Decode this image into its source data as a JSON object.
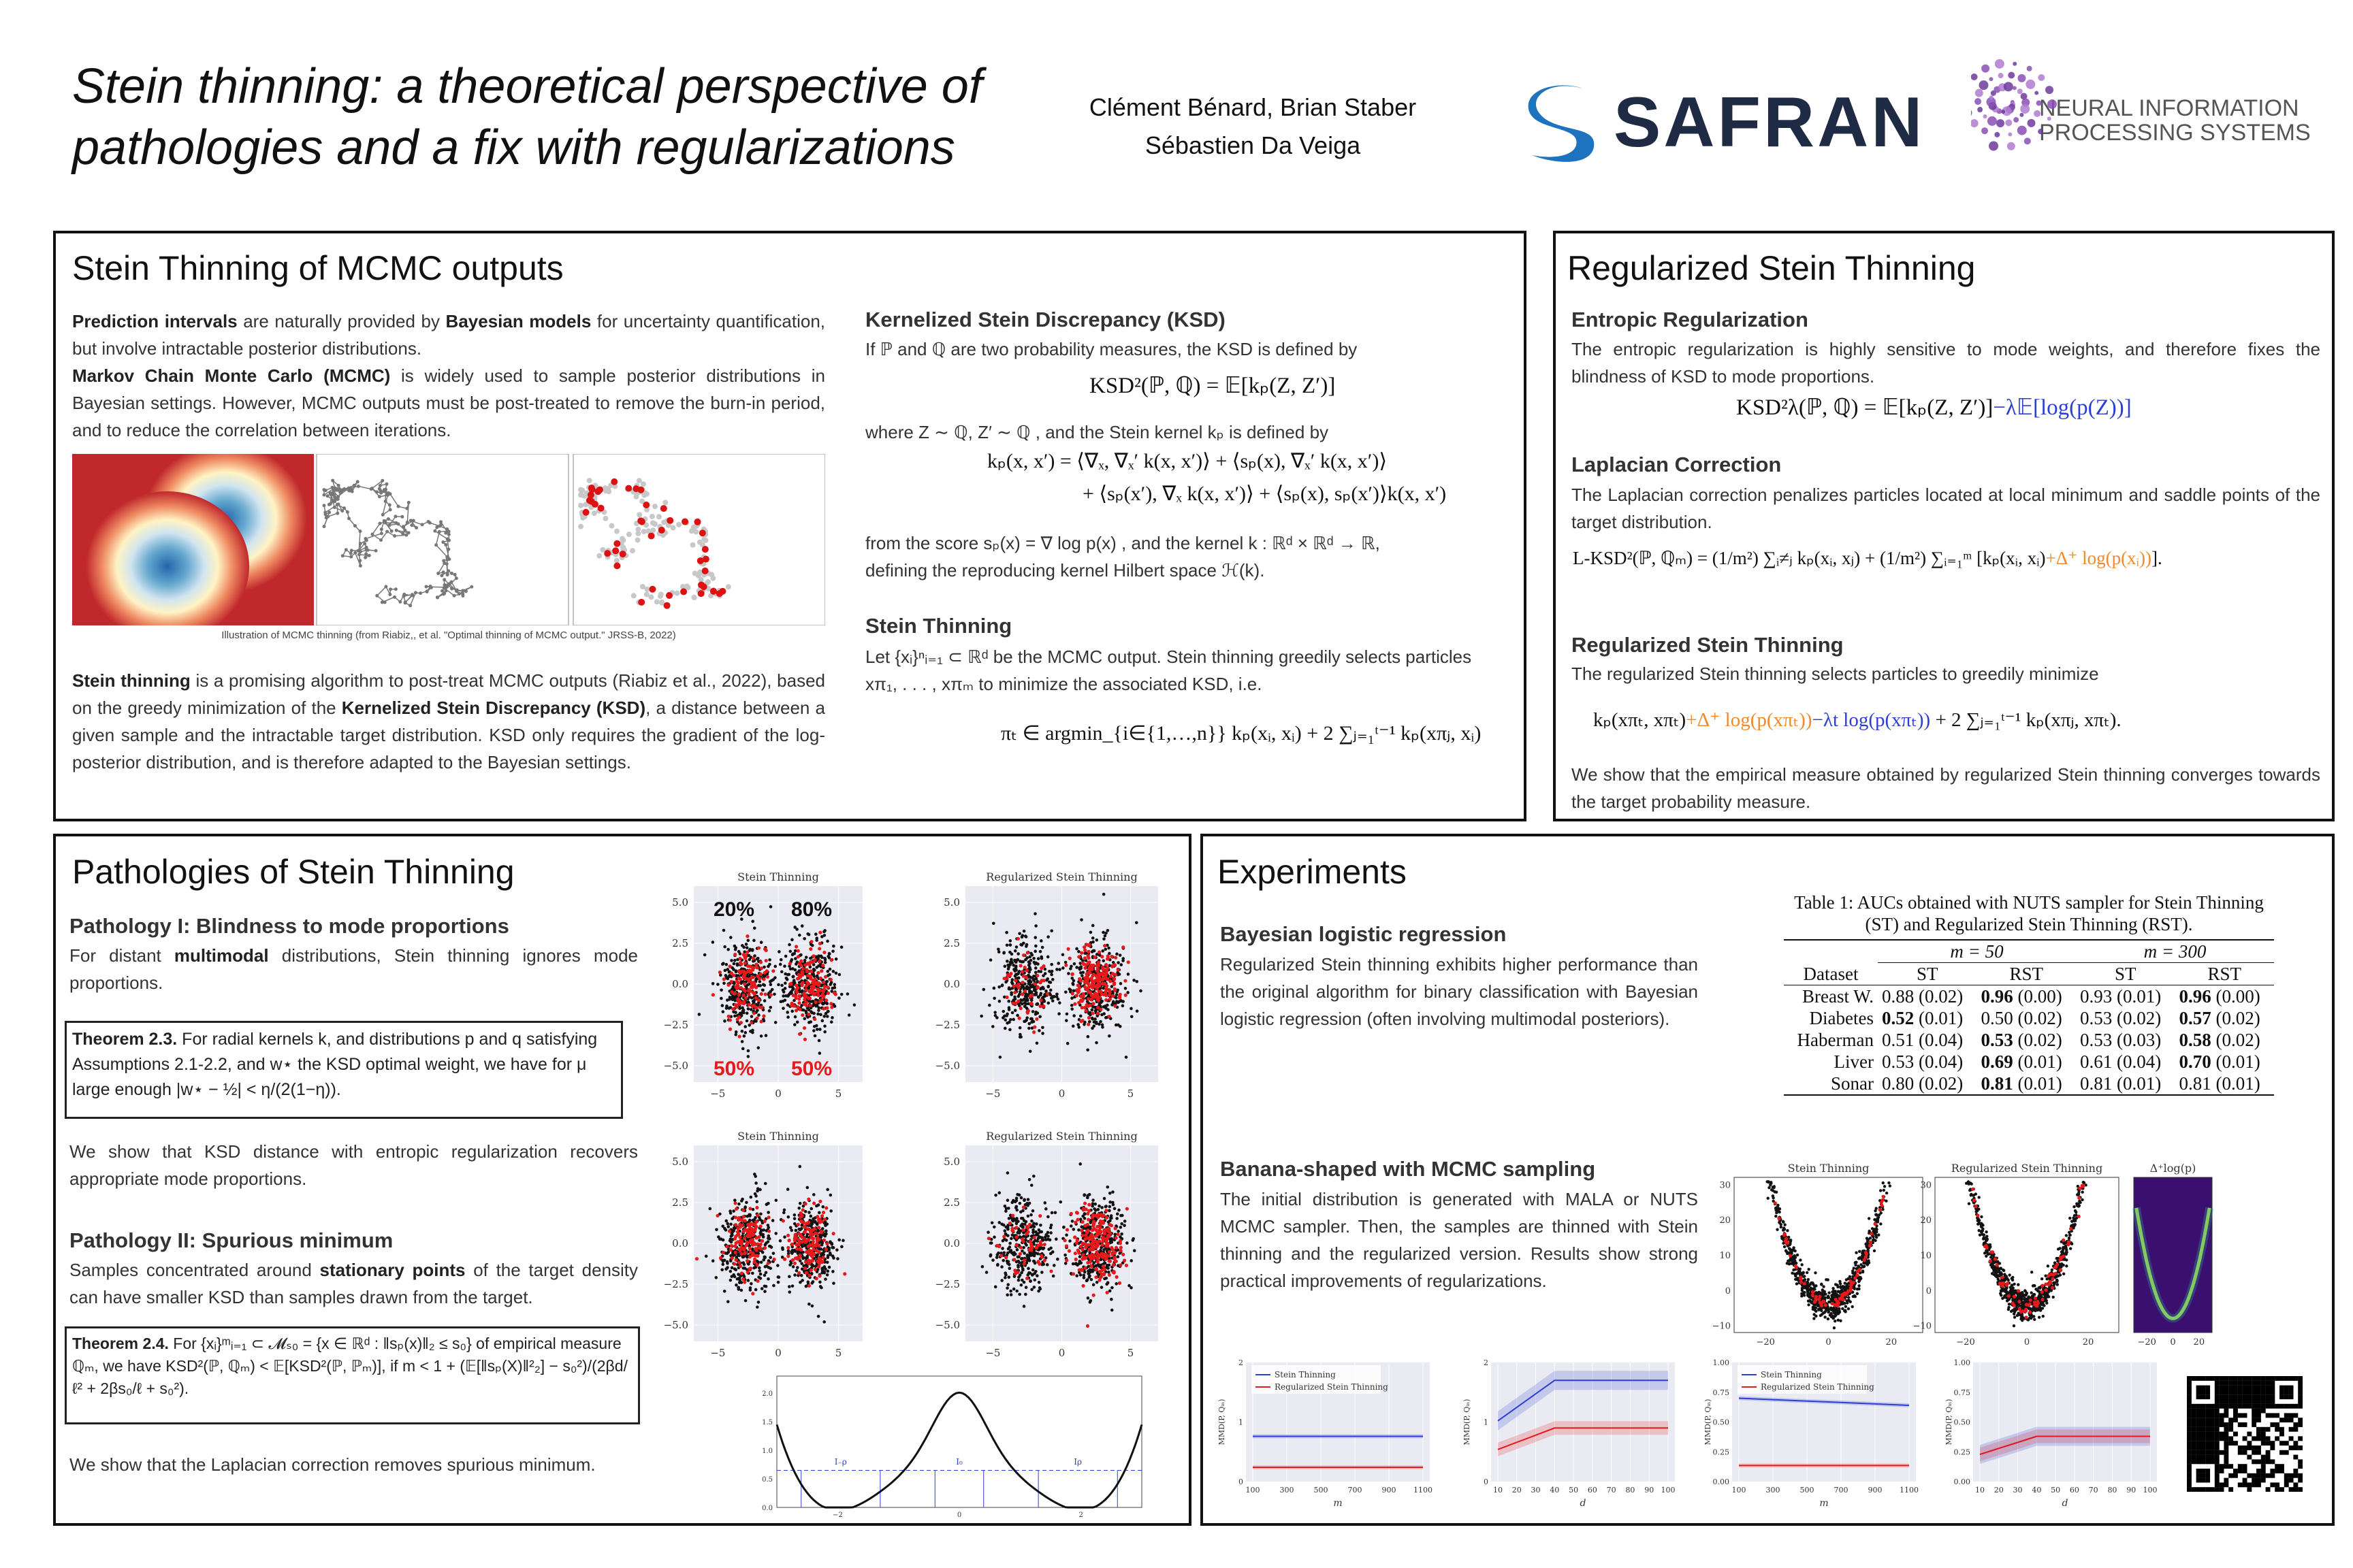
{
  "header": {
    "title_line1": "Stein thinning: a theoretical perspective of",
    "title_line2": "pathologies and a fix with regularizations",
    "authors_line1": "Clément Bénard, Brian Staber",
    "authors_line2": "Sébastien Da Veiga",
    "safran": "SAFRAN",
    "neurips_line1": "NEURAL INFORMATION",
    "neurips_line2": "PROCESSING SYSTEMS"
  },
  "mcmc": {
    "heading": "Stein Thinning of MCMC outputs",
    "intro": [
      {
        "bold": "Prediction intervals"
      },
      " are naturally provided by ",
      {
        "bold": "Bayesian models"
      },
      " for uncertainty quantification, but involve intractable posterior distributions."
    ],
    "intro2": [
      {
        "bold": "Markov Chain Monte Carlo (MCMC)"
      },
      " is widely used to sample posterior distributions in Bayesian settings. However, MCMC outputs must be post-treated to remove the burn-in period, and to reduce the correlation between iterations."
    ],
    "caption": "Illustration of MCMC thinning (from Riabiz,, et al. \"Optimal thinning of MCMC output.\" JRSS-B, 2022)",
    "para": [
      {
        "bold": "Stein thinning"
      },
      " is a promising algorithm to post-treat MCMC outputs (Riabiz et al., 2022), based on the greedy minimization of the ",
      {
        "bold": "Kernelized Stein Discrepancy (KSD)"
      },
      ", a distance between a given sample and the intractable target distribution. KSD only requires the gradient of the log-posterior distribution, and is therefore adapted to the Bayesian settings."
    ],
    "ksd_heading": "Kernelized Stein Discrepancy (KSD)",
    "ksd_text": "If ℙ and ℚ are two probability measures, the KSD is defined by",
    "ksd_eq": "KSD²(ℙ, ℚ) = 𝔼[kₚ(Z, Z′)]",
    "where": "where Z ∼ ℚ, Z′ ∼ ℚ , and the Stein kernel  kₚ  is defined by",
    "kernel_eq1": "kₚ(x, x′) = ⟨∇ₓ, ∇ₓ′ k(x, x′)⟩ + ⟨sₚ(x), ∇ₓ′ k(x, x′)⟩",
    "kernel_eq2": "+ ⟨sₚ(x′), ∇ₓ k(x, x′)⟩ + ⟨sₚ(x), sₚ(x′)⟩k(x, x′)",
    "score": "from the score  sₚ(x) = ∇ log p(x) , and the kernel  k : ℝᵈ × ℝᵈ → ℝ,",
    "score2": "defining the reproducing kernel Hilbert space ℋ(k).",
    "st_heading": "Stein Thinning",
    "st_text1": "Let {xᵢ}ⁿᵢ₌₁ ⊂ ℝᵈ be the MCMC output. Stein thinning greedily selects particles",
    "st_text2": "xπ₁, . . . , xπₘ  to minimize the associated KSD, i.e.",
    "st_eq": "πₜ ∈ argmin_{i∈{1,…,n}} kₚ(xᵢ, xᵢ) + 2 ∑ⱼ₌₁ᵗ⁻¹ kₚ(xπⱼ, xᵢ)"
  },
  "regularized": {
    "heading": "Regularized Stein Thinning",
    "ent_heading": "Entropic Regularization",
    "ent_text": "The entropic regularization is highly sensitive to mode weights, and therefore fixes the blindness of KSD to mode proportions.",
    "ent_eq": [
      "KSD²λ(ℙ, ℚ) = 𝔼[kₚ(Z, Z′)]",
      {
        "text": "−λ𝔼[log(p(Z))]",
        "color": "#2b3fd0"
      }
    ],
    "lap_heading": "Laplacian Correction",
    "lap_text": "The Laplacian correction penalizes particles located at local minimum and saddle points of the target distribution.",
    "lap_eq": [
      "L-KSD²(ℙ, ℚₘ) = (1/m²) ∑ᵢ≠ⱼ kₚ(xᵢ, xⱼ) + (1/m²) ∑ᵢ₌₁ᵐ [kₚ(xᵢ, xᵢ)",
      {
        "text": "+Δ⁺ log(p(xᵢ))",
        "color": "#f08a2c"
      },
      "]."
    ],
    "rst_heading": "Regularized Stein Thinning",
    "rst_text": "The regularized Stein thinning selects particles to greedily minimize",
    "rst_eq": [
      "kₚ(xπₜ, xπₜ)",
      {
        "text": "+Δ⁺ log(p(xπₜ))",
        "color": "#f08a2c"
      },
      {
        "text": "−λt log(p(xπₜ))",
        "color": "#2b3fd0"
      },
      " + 2 ∑ⱼ₌₁ᵗ⁻¹ kₚ(xπⱼ, xπₜ)."
    ],
    "conclusion": "We show that the empirical measure obtained by regularized Stein thinning converges towards the target probability measure."
  },
  "pathology": {
    "heading": "Pathologies of Stein Thinning",
    "p1_heading": "Pathology I: Blindness to mode proportions",
    "p1_text": [
      "For distant ",
      {
        "bold": "multimodal"
      },
      " distributions, Stein thinning ignores mode proportions."
    ],
    "thm23": [
      {
        "bold": "Theorem 2.3."
      },
      " For radial kernels k, and distributions p and q satisfying Assumptions 2.1-2.2, and w⋆ the KSD optimal weight, we have for μ large enough |w⋆ − ½| < η/(2(1−η))."
    ],
    "p1_after": "We show that KSD distance with entropic regularization recovers appropriate mode proportions.",
    "p2_heading": "Pathology II: Spurious minimum",
    "p2_text": [
      "Samples concentrated around ",
      {
        "bold": "stationary points"
      },
      " of the target density can have smaller KSD than samples drawn from the target."
    ],
    "thm24": [
      {
        "bold": "Theorem 2.4."
      },
      " For {xᵢ}ᵐᵢ₌₁ ⊂ 𝓜ₛ₀ = {x ∈ ℝᵈ : ‖sₚ(x)‖₂ ≤ s₀} of empirical measure ℚₘ, we have KSD²(ℙ, ℚₘ) < 𝔼[KSD²(ℙ, ℙₘ)], if  m < 1 + (𝔼[‖sₚ(X)‖²₂] − s₀²)/(2βd/ℓ² + 2βs₀/ℓ + s₀²)."
    ],
    "p2_after": "We show that the Laplacian correction removes spurious minimum.",
    "scatter": {
      "titles": [
        "Stein Thinning",
        "Regularized Stein Thinning",
        "Stein Thinning",
        "Regularized Stein Thinning"
      ],
      "annotations": [
        "20%",
        "80%",
        "50%",
        "50%"
      ],
      "yticks": [
        "5.0",
        "2.5",
        "0.0",
        "−2.5",
        "−5.0"
      ],
      "xticks": [
        "−5",
        "0",
        "5"
      ]
    },
    "curve": {
      "yticks": [
        "0.0",
        "0.5",
        "1.0",
        "1.5",
        "2.0"
      ],
      "xticks": [
        "−2",
        "0",
        "2"
      ],
      "labels": [
        "I₋ρ",
        "I₀",
        "Iρ"
      ]
    }
  },
  "experiments": {
    "heading": "Experiments",
    "blr_heading": "Bayesian logistic regression",
    "blr_text": "Regularized Stein thinning exhibits higher performance than the original algorithm for binary classification with Bayesian logistic regression (often involving multimodal posteriors).",
    "table": {
      "caption": "Table 1:  AUCs obtained with NUTS sampler for Stein Thinning (ST) and Regularized Stein Thinning (RST).",
      "groups": [
        "m = 50",
        "m = 300"
      ],
      "headers": [
        "Dataset",
        "ST",
        "RST",
        "ST",
        "RST"
      ],
      "rows": [
        [
          "Breast W.",
          "0.88 (0.02)",
          [
            {
              "bold": "0.96"
            },
            " (0.00)"
          ],
          "0.93 (0.01)",
          [
            {
              "bold": "0.96"
            },
            " (0.00)"
          ]
        ],
        [
          "Diabetes",
          [
            {
              "bold": "0.52"
            },
            " (0.01)"
          ],
          "0.50 (0.02)",
          "0.53 (0.02)",
          [
            {
              "bold": "0.57"
            },
            " (0.02)"
          ]
        ],
        [
          "Haberman",
          "0.51 (0.04)",
          [
            {
              "bold": "0.53"
            },
            " (0.02)"
          ],
          "0.53 (0.03)",
          [
            {
              "bold": "0.58"
            },
            " (0.02)"
          ]
        ],
        [
          "Liver",
          "0.53 (0.04)",
          [
            {
              "bold": "0.69"
            },
            " (0.01)"
          ],
          "0.61 (0.04)",
          [
            {
              "bold": "0.70"
            },
            " (0.01)"
          ]
        ],
        [
          "Sonar",
          "0.80 (0.02)",
          [
            {
              "bold": "0.81"
            },
            " (0.01)"
          ],
          "0.81 (0.01)",
          "0.81 (0.01)"
        ]
      ]
    },
    "banana_heading": "Banana-shaped with MCMC sampling",
    "banana_text": "The initial distribution is generated with MALA or NUTS MCMC sampler. Then, the samples are thinned with Stein thinning and the regularized version. Results show strong practical improvements of regularizations.",
    "banana": {
      "titles": [
        "Stein Thinning",
        "Regularized Stein Thinning",
        "Δ⁺log(p)"
      ],
      "yticks": [
        "30",
        "20",
        "10",
        "0",
        "−10"
      ],
      "xticks": [
        "−20",
        "0",
        "20"
      ]
    },
    "mmd": {
      "legend": [
        "Stein Thinning",
        "Regularized Stein Thinning"
      ],
      "ylabel": "MMD(P, Qₘ)",
      "m_label": "m",
      "d_label": "d",
      "m_ticks": [
        "100",
        "300",
        "500",
        "700",
        "900",
        "1100"
      ],
      "d_ticks": [
        "10",
        "20",
        "30",
        "40",
        "50",
        "60",
        "70",
        "80",
        "90",
        "100"
      ],
      "y_ticks_a": [
        "0",
        "1",
        "2"
      ],
      "y_ticks_b": [
        "0.00",
        "0.25",
        "0.50",
        "0.75",
        "1.00"
      ]
    }
  }
}
